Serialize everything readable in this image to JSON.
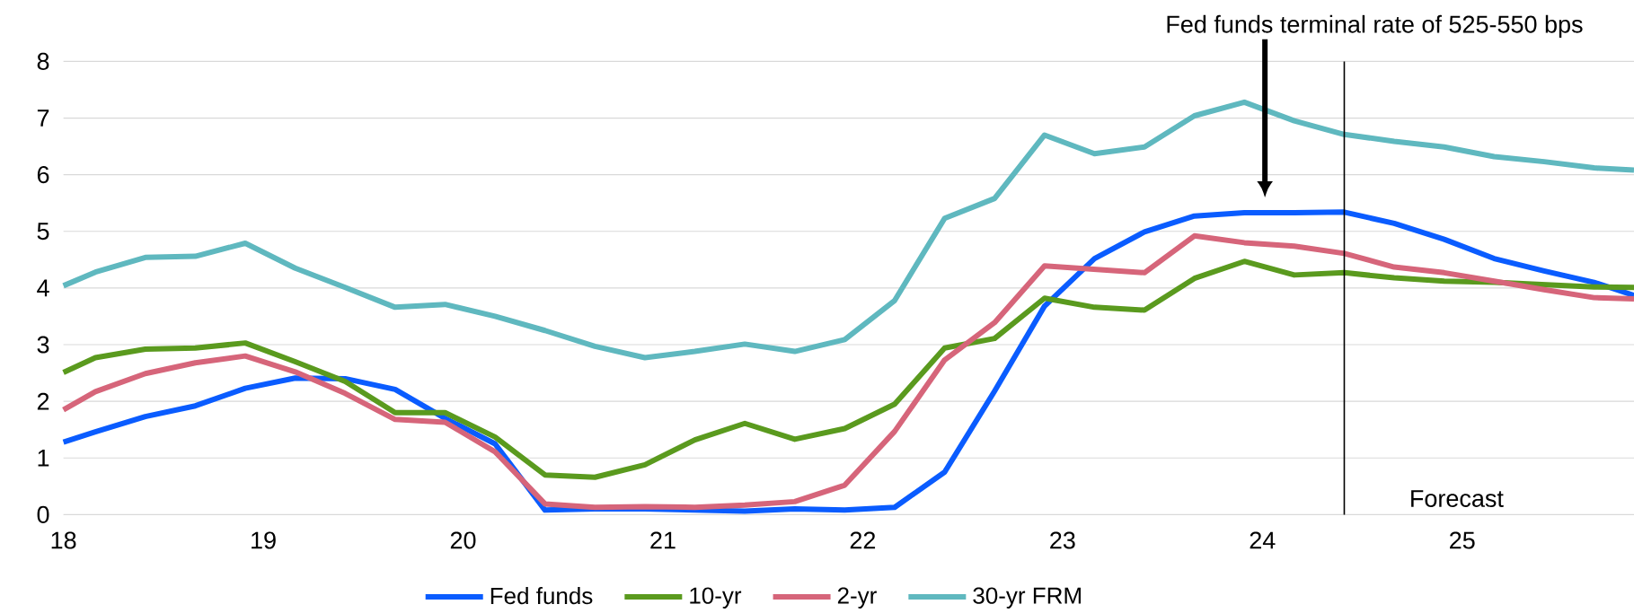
{
  "chart_data": {
    "type": "line",
    "x": [
      18,
      18.16,
      18.41,
      18.66,
      18.91,
      19.16,
      19.41,
      19.66,
      19.91,
      20.16,
      20.41,
      20.66,
      20.91,
      21.16,
      21.41,
      21.66,
      21.91,
      22.16,
      22.41,
      22.66,
      22.91,
      23.16,
      23.41,
      23.66,
      23.91,
      24.16,
      24.41,
      24.66,
      24.91,
      25.16,
      25.41,
      25.66,
      25.86
    ],
    "series": [
      {
        "name": "Fed funds",
        "color": "#0a5cff",
        "values": [
          1.28,
          1.46,
          1.73,
          1.92,
          2.23,
          2.41,
          2.4,
          2.21,
          1.7,
          1.25,
          0.08,
          0.1,
          0.1,
          0.08,
          0.06,
          0.1,
          0.08,
          0.13,
          0.75,
          2.18,
          3.68,
          4.52,
          4.99,
          5.27,
          5.33,
          5.33,
          5.34,
          5.14,
          4.86,
          4.52,
          4.3,
          4.1,
          3.87
        ]
      },
      {
        "name": "10-yr",
        "color": "#5a9a1e",
        "values": [
          2.51,
          2.77,
          2.92,
          2.94,
          3.03,
          2.7,
          2.35,
          1.8,
          1.8,
          1.37,
          0.7,
          0.66,
          0.88,
          1.32,
          1.61,
          1.33,
          1.52,
          1.95,
          2.94,
          3.11,
          3.82,
          3.66,
          3.61,
          4.17,
          4.47,
          4.23,
          4.27,
          4.18,
          4.12,
          4.1,
          4.06,
          4.02,
          4.01
        ]
      },
      {
        "name": "2-yr",
        "color": "#d6657a",
        "values": [
          1.85,
          2.17,
          2.49,
          2.68,
          2.8,
          2.52,
          2.14,
          1.68,
          1.63,
          1.11,
          0.19,
          0.13,
          0.14,
          0.13,
          0.17,
          0.23,
          0.52,
          1.47,
          2.73,
          3.39,
          4.39,
          4.33,
          4.27,
          4.92,
          4.8,
          4.74,
          4.61,
          4.37,
          4.27,
          4.12,
          3.97,
          3.83,
          3.81
        ]
      },
      {
        "name": "30-yr FRM",
        "color": "#5fb8bf",
        "values": [
          4.04,
          4.28,
          4.54,
          4.56,
          4.79,
          4.35,
          4.01,
          3.66,
          3.71,
          3.5,
          3.25,
          2.97,
          2.77,
          2.88,
          3.01,
          2.88,
          3.09,
          3.78,
          5.23,
          5.58,
          6.7,
          6.37,
          6.49,
          7.04,
          7.28,
          6.95,
          6.71,
          6.59,
          6.49,
          6.32,
          6.23,
          6.12,
          6.08
        ]
      }
    ],
    "xlim": [
      18,
      25.86
    ],
    "xticks": [
      18,
      19,
      20,
      21,
      22,
      23,
      24,
      25
    ],
    "ylim": [
      0,
      8
    ],
    "yticks": [
      0,
      1,
      2,
      3,
      4,
      5,
      6,
      7,
      8
    ],
    "grid": "y",
    "legend": "bottom",
    "marker": "none",
    "line_style": "solid",
    "ref_lines": [
      {
        "axis": "x",
        "value": 24.41,
        "label": "Forecast",
        "color": "#000000"
      }
    ],
    "annotations": [
      "Fed funds terminal rate of 525-550 bps"
    ]
  }
}
